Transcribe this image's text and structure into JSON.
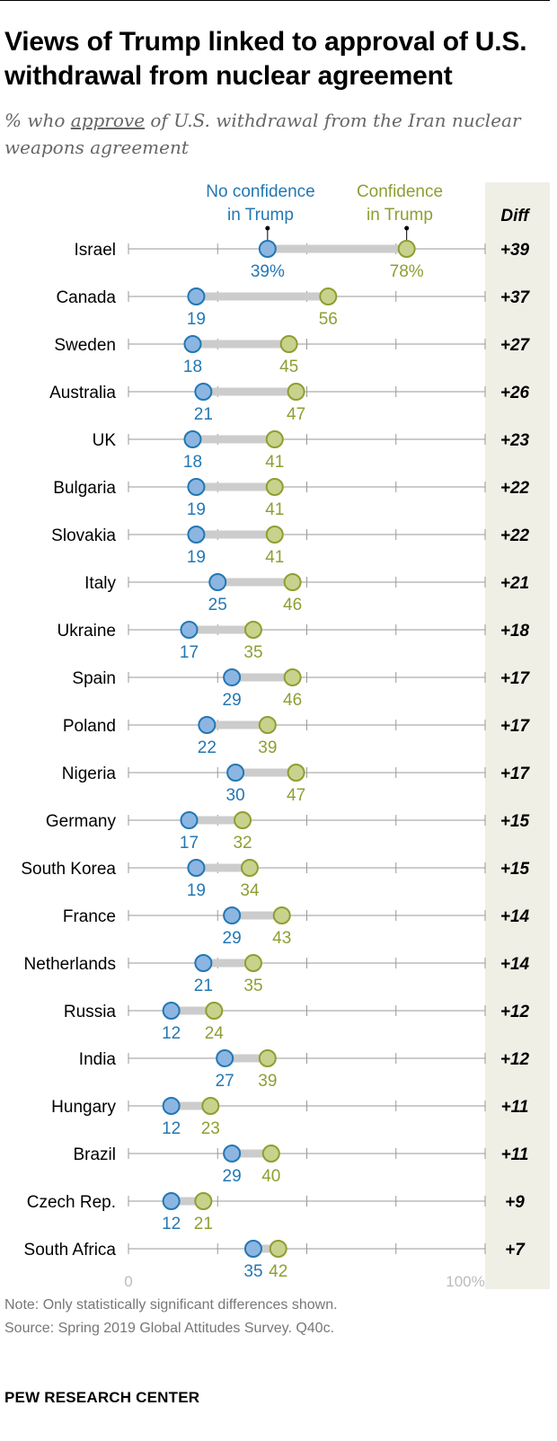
{
  "title": "Views of Trump linked to approval of U.S. withdrawal from nuclear agreement",
  "subtitle": {
    "before": "% who ",
    "underlined": "approve",
    "after": " of U.S. withdrawal from the Iran nuclear weapons agreement"
  },
  "colors": {
    "no_confidence": "#2377b4",
    "no_confidence_fill": "#8cb6e1",
    "confidence": "#8f9e32",
    "confidence_fill": "#c9d28c",
    "diff_column_bg": "#f0efe6",
    "connector": "#cccccc",
    "axis_line": "#999999",
    "axis_label": "#bbbbbb"
  },
  "chart_data": {
    "type": "dot-plot",
    "legend": {
      "no_confidence": "No confidence in Trump",
      "no_confidence_lines": [
        "No confidence",
        "in Trump"
      ],
      "confidence": "Confidence in Trump",
      "confidence_lines": [
        "Confidence",
        "in Trump"
      ]
    },
    "diff_header": "Diff",
    "axis": {
      "min_label": "0",
      "max_label": "100%",
      "xlim": [
        0,
        100
      ]
    },
    "categories": [
      "Israel",
      "Canada",
      "Sweden",
      "Australia",
      "UK",
      "Bulgaria",
      "Slovakia",
      "Italy",
      "Ukraine",
      "Spain",
      "Poland",
      "Nigeria",
      "Germany",
      "South Korea",
      "France",
      "Netherlands",
      "Russia",
      "India",
      "Hungary",
      "Brazil",
      "Czech Rep.",
      "South Africa"
    ],
    "series": [
      {
        "name": "No confidence in Trump",
        "values": [
          39,
          19,
          18,
          21,
          18,
          19,
          19,
          25,
          17,
          29,
          22,
          30,
          17,
          19,
          29,
          21,
          12,
          27,
          12,
          29,
          12,
          35
        ]
      },
      {
        "name": "Confidence in Trump",
        "values": [
          78,
          56,
          45,
          47,
          41,
          41,
          41,
          46,
          35,
          46,
          39,
          47,
          32,
          34,
          43,
          35,
          24,
          39,
          23,
          40,
          21,
          42
        ]
      }
    ],
    "value_labels": {
      "no_confidence": [
        "39%",
        "19",
        "18",
        "21",
        "18",
        "19",
        "19",
        "25",
        "17",
        "29",
        "22",
        "30",
        "17",
        "19",
        "29",
        "21",
        "12",
        "27",
        "12",
        "29",
        "12",
        "35"
      ],
      "confidence": [
        "78%",
        "56",
        "45",
        "47",
        "41",
        "41",
        "41",
        "46",
        "35",
        "46",
        "39",
        "47",
        "32",
        "34",
        "43",
        "35",
        "24",
        "39",
        "23",
        "40",
        "21",
        "42"
      ]
    },
    "diff": [
      "+39",
      "+37",
      "+27",
      "+26",
      "+23",
      "+22",
      "+22",
      "+21",
      "+18",
      "+17",
      "+17",
      "+17",
      "+15",
      "+15",
      "+14",
      "+14",
      "+12",
      "+12",
      "+11",
      "+11",
      "+9",
      "+7"
    ]
  },
  "note": "Note: Only statistically significant differences shown.",
  "source": "Source: Spring 2019 Global Attitudes Survey. Q40c.",
  "brand": "PEW RESEARCH CENTER"
}
